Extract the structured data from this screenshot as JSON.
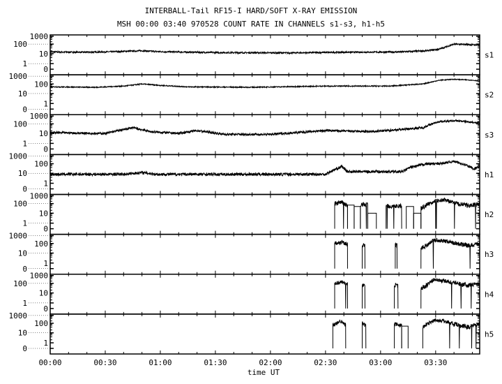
{
  "chart_data": {
    "type": "line",
    "title": "INTERBALL-Tail RF15-I HARD/SOFT X-RAY EMISSION",
    "subtitle": "MSH 00:00 03:40 970528  COUNT RATE IN CHANNELS s1-s3, h1-h5",
    "xlabel": "time UT",
    "x_unit": "minutes after 00:00 UT",
    "xlim": [
      0,
      234
    ],
    "x_ticks": [
      {
        "t": 0,
        "label": "00:00"
      },
      {
        "t": 30,
        "label": "00:30"
      },
      {
        "t": 60,
        "label": "01:00"
      },
      {
        "t": 90,
        "label": "01:30"
      },
      {
        "t": 120,
        "label": "02:00"
      },
      {
        "t": 150,
        "label": "02:30"
      },
      {
        "t": 180,
        "label": "03:00"
      },
      {
        "t": 210,
        "label": "03:30"
      }
    ],
    "y_scale": "log",
    "y_tick_labels": [
      "1000",
      "100",
      "10",
      "1",
      "0"
    ],
    "grid": false,
    "line_color": "#000000",
    "panels": [
      {
        "name": "s1",
        "points": [
          [
            0,
            15
          ],
          [
            20,
            14
          ],
          [
            35,
            16
          ],
          [
            50,
            20
          ],
          [
            60,
            16
          ],
          [
            90,
            13
          ],
          [
            130,
            12
          ],
          [
            160,
            14
          ],
          [
            190,
            15
          ],
          [
            205,
            20
          ],
          [
            212,
            30
          ],
          [
            220,
            100
          ],
          [
            228,
            90
          ],
          [
            234,
            80
          ]
        ]
      },
      {
        "name": "s2",
        "points": [
          [
            0,
            50
          ],
          [
            25,
            45
          ],
          [
            40,
            60
          ],
          [
            50,
            100
          ],
          [
            60,
            70
          ],
          [
            75,
            50
          ],
          [
            110,
            45
          ],
          [
            150,
            60
          ],
          [
            185,
            60
          ],
          [
            195,
            80
          ],
          [
            203,
            100
          ],
          [
            212,
            300
          ],
          [
            220,
            400
          ],
          [
            228,
            330
          ],
          [
            234,
            250
          ]
        ]
      },
      {
        "name": "s3",
        "points": [
          [
            0,
            12
          ],
          [
            30,
            10
          ],
          [
            45,
            40
          ],
          [
            55,
            15
          ],
          [
            70,
            10
          ],
          [
            80,
            20
          ],
          [
            95,
            8
          ],
          [
            120,
            8
          ],
          [
            150,
            20
          ],
          [
            175,
            15
          ],
          [
            195,
            30
          ],
          [
            203,
            40
          ],
          [
            212,
            200
          ],
          [
            222,
            250
          ],
          [
            230,
            160
          ],
          [
            234,
            130
          ]
        ]
      },
      {
        "name": "h1",
        "points": [
          [
            0,
            8
          ],
          [
            40,
            8
          ],
          [
            50,
            12
          ],
          [
            58,
            8
          ],
          [
            150,
            8
          ],
          [
            156,
            30
          ],
          [
            159,
            50
          ],
          [
            162,
            15
          ],
          [
            185,
            15
          ],
          [
            192,
            15
          ],
          [
            196,
            40
          ],
          [
            205,
            100
          ],
          [
            212,
            100
          ],
          [
            220,
            200
          ],
          [
            226,
            80
          ],
          [
            231,
            30
          ],
          [
            234,
            50
          ]
        ]
      },
      {
        "name": "h2",
        "points": [
          [
            155,
            100
          ],
          [
            159,
            150
          ],
          [
            162,
            60
          ],
          [
            165.6,
            70
          ],
          [
            169,
            50
          ],
          [
            170,
            80
          ],
          [
            173,
            80
          ],
          [
            177.7,
            10
          ],
          [
            183,
            70
          ],
          [
            186,
            50
          ],
          [
            191.5,
            60
          ],
          [
            194,
            50
          ],
          [
            198,
            10
          ],
          [
            202,
            30
          ],
          [
            203,
            40
          ],
          [
            209,
            200
          ],
          [
            215,
            300
          ],
          [
            222,
            100
          ],
          [
            228,
            60
          ],
          [
            234,
            100
          ]
        ],
        "active": [
          [
            155,
            162
          ],
          [
            169,
            173
          ],
          [
            183,
            191.5
          ],
          [
            202,
            234
          ]
        ],
        "steps": [
          [
            162,
            165.6,
            70
          ],
          [
            165.6,
            169,
            50
          ],
          [
            173,
            177.7,
            10
          ],
          [
            194,
            198,
            50
          ],
          [
            198,
            202,
            10
          ]
        ]
      },
      {
        "name": "h3",
        "points": [
          [
            155,
            100
          ],
          [
            159,
            150
          ],
          [
            162,
            80
          ],
          [
            170,
            60
          ],
          [
            171.5,
            60
          ],
          [
            188,
            60
          ],
          [
            189,
            60
          ],
          [
            202,
            30
          ],
          [
            205,
            60
          ],
          [
            209,
            300
          ],
          [
            215,
            200
          ],
          [
            222,
            100
          ],
          [
            228,
            60
          ],
          [
            234,
            100
          ]
        ],
        "active": [
          [
            155,
            162
          ],
          [
            170,
            171.5
          ],
          [
            188,
            189
          ],
          [
            202,
            234
          ]
        ],
        "steps": []
      },
      {
        "name": "h4",
        "points": [
          [
            155,
            100
          ],
          [
            159,
            150
          ],
          [
            162,
            80
          ],
          [
            170,
            60
          ],
          [
            171.5,
            60
          ],
          [
            187.5,
            60
          ],
          [
            189.5,
            60
          ],
          [
            202,
            30
          ],
          [
            205,
            60
          ],
          [
            209,
            300
          ],
          [
            215,
            200
          ],
          [
            222,
            100
          ],
          [
            228,
            60
          ],
          [
            234,
            100
          ]
        ],
        "active": [
          [
            155,
            162
          ],
          [
            170,
            171.5
          ],
          [
            187.5,
            189.5
          ],
          [
            202,
            234
          ]
        ],
        "steps": []
      },
      {
        "name": "h5",
        "points": [
          [
            154,
            60
          ],
          [
            158,
            200
          ],
          [
            161,
            80
          ],
          [
            170,
            100
          ],
          [
            172,
            60
          ],
          [
            187.5,
            80
          ],
          [
            191.5,
            60
          ],
          [
            203,
            40
          ],
          [
            209,
            250
          ],
          [
            215,
            200
          ],
          [
            222,
            60
          ],
          [
            228,
            40
          ],
          [
            234,
            100
          ]
        ],
        "active": [
          [
            154,
            161
          ],
          [
            170,
            172
          ],
          [
            187.5,
            191.5
          ],
          [
            203,
            234
          ]
        ],
        "steps": [
          [
            191.5,
            195,
            50
          ]
        ]
      }
    ]
  }
}
